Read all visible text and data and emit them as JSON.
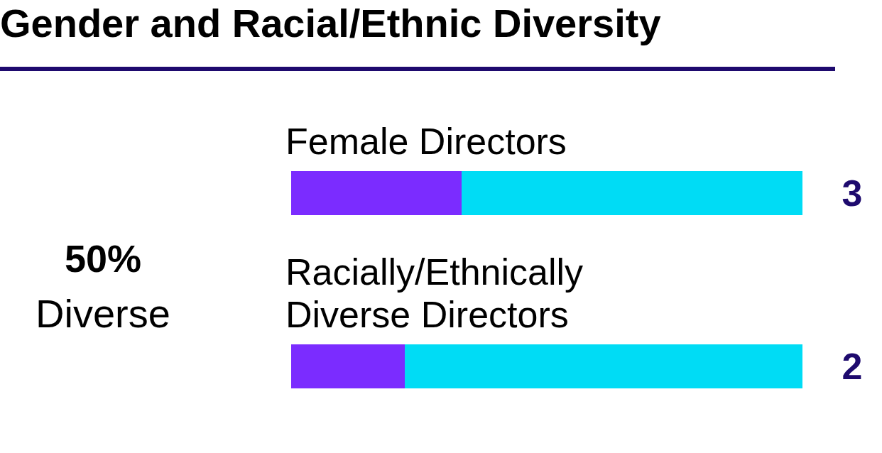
{
  "chart_data": {
    "type": "bar",
    "orientation": "horizontal",
    "stacked": true,
    "title": "Gender and Racial/Ethnic Diversity",
    "categories": [
      "Female Directors",
      "Racially/Ethnically Diverse Directors"
    ],
    "series": [
      {
        "color": "#7b2cff",
        "values": [
          3,
          2
        ],
        "value_labels": [
          "3",
          "2"
        ]
      },
      {
        "color": "#00dcf5",
        "values": [
          6,
          7
        ]
      }
    ],
    "annotations": [
      "50%",
      "Diverse"
    ]
  }
}
